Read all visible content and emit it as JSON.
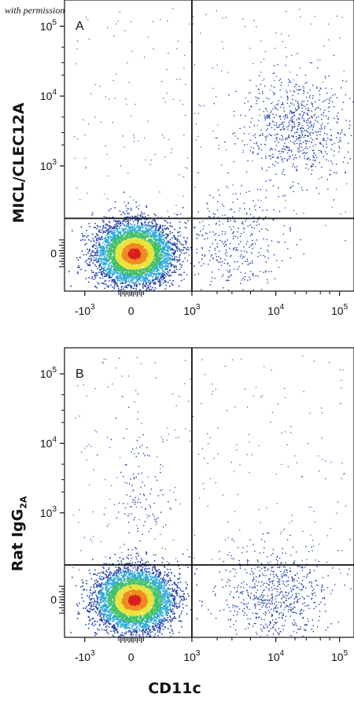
{
  "credit": "with permission from R&D Systems",
  "x_axis_title": "CD11c",
  "chart_data": [
    {
      "type": "scatter",
      "panel_label": "A",
      "ylabel": "MICL/CLEC12A",
      "xlabel": "CD11c",
      "x_scale": "biexponential",
      "y_scale": "biexponential",
      "x_ticks": [
        "-10^3",
        "0",
        "10^3",
        "10^4",
        "10^5"
      ],
      "y_ticks": [
        "0",
        "10^3",
        "10^4",
        "10^5"
      ],
      "quadrant_gate": {
        "x": 1000,
        "y": 400
      },
      "populations": [
        {
          "name": "",
          "center": {
            "x": 50,
            "y": 0
          },
          "spread": "dense",
          "weight": 0.82
        },
        {
          "name": "",
          "center": {
            "x": 20000,
            "y": 3500
          },
          "spread": "diffuse",
          "weight": 0.12
        },
        {
          "name": "",
          "center": {
            "x": 3000,
            "y": 100
          },
          "spread": "diffuse",
          "weight": 0.06
        }
      ]
    },
    {
      "type": "scatter",
      "panel_label": "B",
      "ylabel": "Rat IgG2A",
      "xlabel": "CD11c",
      "x_scale": "biexponential",
      "y_scale": "biexponential",
      "x_ticks": [
        "-10^3",
        "0",
        "10^3",
        "10^4",
        "10^5"
      ],
      "y_ticks": [
        "0",
        "10^3",
        "10^4",
        "10^5"
      ],
      "quadrant_gate": {
        "x": 1000,
        "y": 400
      },
      "populations": [
        {
          "name": "",
          "center": {
            "x": 50,
            "y": 0
          },
          "spread": "dense",
          "weight": 0.86
        },
        {
          "name": "",
          "center": {
            "x": 10000,
            "y": 50
          },
          "spread": "diffuse",
          "weight": 0.12
        },
        {
          "name": "",
          "center": {
            "x": 100,
            "y": 1500
          },
          "spread": "sparse",
          "weight": 0.02
        }
      ]
    }
  ],
  "colors": {
    "low": "#1f3fa8",
    "mid_low": "#2aa8d8",
    "mid": "#3fbf6a",
    "mid_high": "#e8e33a",
    "high": "#f08a1e",
    "peak": "#d9201c",
    "axis": "#111111"
  }
}
